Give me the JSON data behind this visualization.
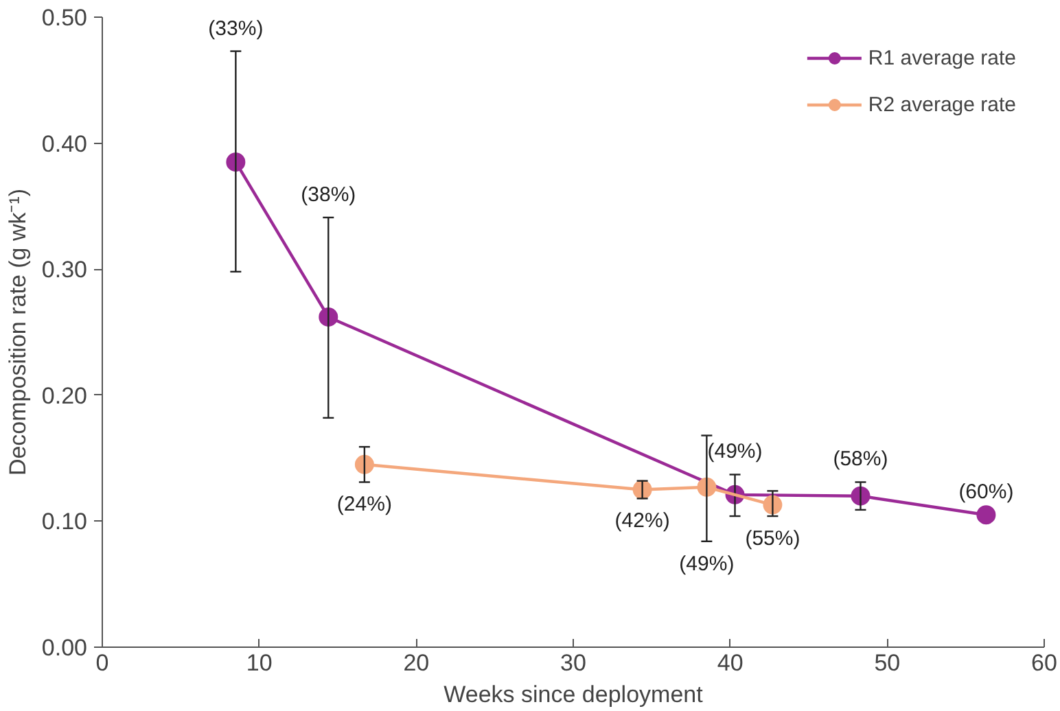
{
  "chart_data": {
    "type": "line",
    "xlabel": "Weeks since deployment",
    "ylabel": "Decomposition rate (g wk⁻¹)",
    "xlim": [
      0,
      60
    ],
    "xticks": [
      0,
      10,
      20,
      30,
      40,
      50,
      60
    ],
    "ylim": [
      0,
      0.5
    ],
    "yticks": [
      {
        "value": 0,
        "label": "0.00"
      },
      {
        "value": 0.1,
        "label": "0.10"
      },
      {
        "value": 0.2,
        "label": "0.20"
      },
      {
        "value": 0.3,
        "label": "0.30"
      },
      {
        "value": 0.4,
        "label": "0.40"
      },
      {
        "value": 0.5,
        "label": "0.50"
      }
    ],
    "grid": false,
    "legend": "top right",
    "marker": "circle",
    "line_style": "solid",
    "series": [
      {
        "name": "R1 average rate",
        "color": "#9b2a96",
        "x": [
          8.5,
          14.4,
          40.3,
          48.3,
          56.3
        ],
        "values": [
          0.385,
          0.262,
          0.121,
          0.12,
          0.105
        ],
        "errors": [
          [
            0.298,
            0.473
          ],
          [
            0.182,
            0.341
          ],
          [
            0.104,
            0.137
          ],
          [
            0.109,
            0.131
          ],
          null
        ]
      },
      {
        "name": "R2 average rate",
        "color": "#f4a77c",
        "x": [
          16.7,
          34.4,
          38.5,
          42.7
        ],
        "values": [
          0.145,
          0.125,
          0.127,
          0.113
        ],
        "errors": [
          [
            0.131,
            0.159
          ],
          [
            0.118,
            0.132
          ],
          [
            0.084,
            0.168
          ],
          [
            0.104,
            0.124
          ]
        ]
      }
    ],
    "annotations": [
      {
        "text": "(33%)",
        "x": 8.5,
        "y": 0.473
      },
      {
        "text": "(38%)",
        "x": 14.4,
        "y": 0.341
      },
      {
        "text": "(24%)",
        "x": 16.7,
        "y": 0.145
      },
      {
        "text": "(42%)",
        "x": 34.4,
        "y": 0.125
      },
      {
        "text": "(49%)",
        "x": 40.3,
        "y": 0.121
      },
      {
        "text": "(49%)",
        "x": 38.5,
        "y": 0.084
      },
      {
        "text": "(55%)",
        "x": 42.7,
        "y": 0.113
      },
      {
        "text": "(58%)",
        "x": 48.3,
        "y": 0.12
      },
      {
        "text": "(60%)",
        "x": 56.3,
        "y": 0.105
      }
    ]
  }
}
